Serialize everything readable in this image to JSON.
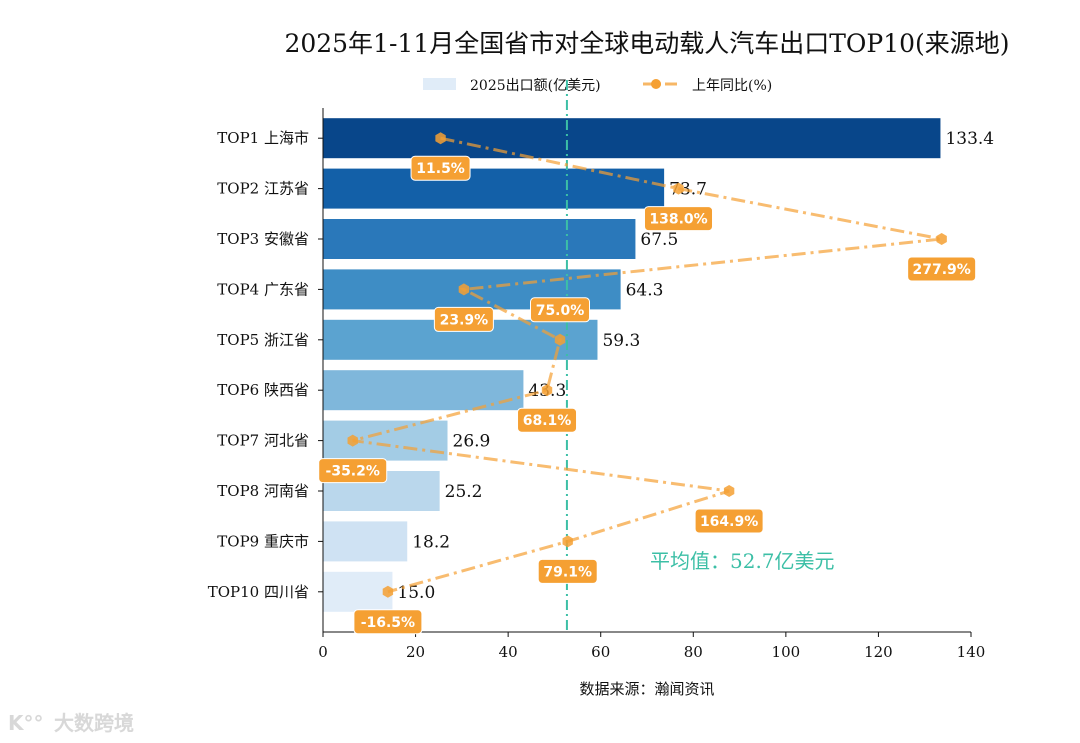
{
  "chart_data": {
    "type": "bar",
    "orientation": "horizontal",
    "title": "2025年1-11月全国省市对全球电动载人汽车出口TOP10(来源地)",
    "xlabel": "数据来源：瀚闻资讯",
    "ylabel": "",
    "xlim": [
      0,
      140
    ],
    "xticks": [
      "0",
      "20",
      "40",
      "60",
      "80",
      "100",
      "120",
      "140"
    ],
    "categories": [
      "TOP1 上海市",
      "TOP2 江苏省",
      "TOP3 安徽省",
      "TOP4 广东省",
      "TOP5 浙江省",
      "TOP6 陕西省",
      "TOP7 河北省",
      "TOP8 河南省",
      "TOP9 重庆市",
      "TOP10 四川省"
    ],
    "series": [
      {
        "name": "2025出口额(亿美元)",
        "type": "bar",
        "values": [
          133.4,
          73.7,
          67.5,
          64.3,
          59.3,
          43.3,
          26.9,
          25.2,
          18.2,
          15.0
        ],
        "value_labels": [
          "133.4",
          "73.7",
          "67.5",
          "64.3",
          "59.3",
          "43.3",
          "26.9",
          "25.2",
          "18.2",
          "15.0"
        ]
      },
      {
        "name": "上年同比(%)",
        "type": "line",
        "axis": "secondary-x (hidden)",
        "xlim": [
          -51,
          293.5
        ],
        "values": [
          11.5,
          138.0,
          277.9,
          23.9,
          75.0,
          68.1,
          -35.2,
          164.9,
          79.1,
          -16.5
        ],
        "value_labels": [
          "11.5%",
          "138.0%",
          "277.9%",
          "23.9%",
          "75.0%",
          "68.1%",
          "-35.2%",
          "164.9%",
          "79.1%",
          "-16.5%"
        ],
        "color": "#f5a033"
      }
    ],
    "bar_colors": [
      "#08468a",
      "#1360a8",
      "#2a78ba",
      "#3e8dc5",
      "#5ba3d0",
      "#7fb7db",
      "#a3cce5",
      "#bad7ec",
      "#cfe2f3",
      "#e0ecf8"
    ],
    "average": {
      "value": 52.7,
      "label": "平均值：52.7亿美元",
      "color": "#3cbfa6"
    },
    "legend": {
      "placement": "top-center",
      "entries": [
        "2025出口额(亿美元)",
        "上年同比(%)"
      ]
    },
    "grid": false
  },
  "watermark": "大数跨境"
}
